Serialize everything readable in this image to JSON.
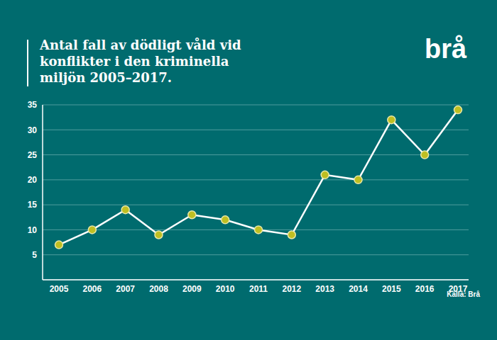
{
  "chart_data": {
    "type": "line",
    "title": "Antal fall av dödligt våld vid konflikter i den kriminella miljön 2005–2017.",
    "categories": [
      "2005",
      "2006",
      "2007",
      "2008",
      "2009",
      "2010",
      "2011",
      "2012",
      "2013",
      "2014",
      "2015",
      "2016",
      "2017"
    ],
    "values": [
      7,
      10,
      14,
      9,
      13,
      12,
      10,
      9,
      21,
      20,
      32,
      25,
      34
    ],
    "color": "#ffffff",
    "marker": "circle",
    "ylim": [
      0,
      35
    ],
    "yticks": [
      5,
      10,
      15,
      20,
      25,
      30,
      35
    ],
    "grid": true,
    "annotations": [
      "brå",
      "Källa: Brå"
    ]
  }
}
